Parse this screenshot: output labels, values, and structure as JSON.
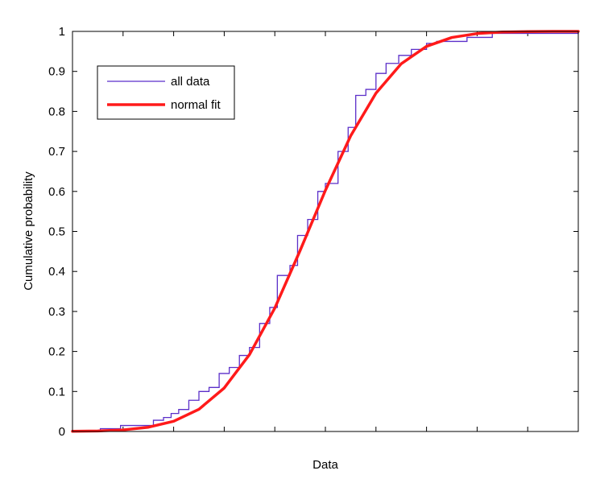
{
  "chart_data": {
    "type": "line",
    "title": "",
    "xlabel": "Data",
    "ylabel": "Cumulative probability",
    "xlim": [
      0,
      10
    ],
    "ylim": [
      0,
      1
    ],
    "x_tick_positions": [
      1,
      2,
      3,
      4,
      5,
      6,
      7,
      8,
      9
    ],
    "x_tick_labels_shown": false,
    "y_ticks": [
      0,
      0.1,
      0.2,
      0.3,
      0.4,
      0.5,
      0.6,
      0.7,
      0.8,
      0.9,
      1
    ],
    "y_tick_labels": [
      "0",
      "0.1",
      "0.2",
      "0.3",
      "0.4",
      "0.5",
      "0.6",
      "0.7",
      "0.8",
      "0.9",
      "1"
    ],
    "grid": false,
    "legend": {
      "location": "top-left",
      "entries": [
        "all data",
        "normal fit"
      ]
    },
    "series": [
      {
        "name": "all data",
        "style": "step",
        "color": "#5b2fc9",
        "x": [
          0,
          0.55,
          0.95,
          1.25,
          1.6,
          1.8,
          1.95,
          2.1,
          2.3,
          2.5,
          2.7,
          2.9,
          3.1,
          3.3,
          3.5,
          3.7,
          3.9,
          4.05,
          4.3,
          4.45,
          4.65,
          4.85,
          5.0,
          5.25,
          5.45,
          5.6,
          5.8,
          6.0,
          6.2,
          6.45,
          6.7,
          7.0,
          7.2,
          7.8,
          8.3,
          10
        ],
        "y": [
          0,
          0.007,
          0.015,
          0.015,
          0.028,
          0.035,
          0.045,
          0.055,
          0.078,
          0.1,
          0.11,
          0.145,
          0.16,
          0.19,
          0.21,
          0.27,
          0.31,
          0.39,
          0.415,
          0.49,
          0.53,
          0.6,
          0.62,
          0.7,
          0.76,
          0.84,
          0.855,
          0.895,
          0.92,
          0.94,
          0.955,
          0.97,
          0.975,
          0.985,
          0.995,
          1.0
        ]
      },
      {
        "name": "normal fit",
        "style": "line",
        "color": "#ff1a1a",
        "x": [
          0,
          0.5,
          1.0,
          1.5,
          2.0,
          2.5,
          3.0,
          3.5,
          4.0,
          4.5,
          5.0,
          5.5,
          6.0,
          6.5,
          7.0,
          7.5,
          8.0,
          8.5,
          9.0,
          9.5,
          10
        ],
        "y": [
          0.0004,
          0.0013,
          0.0039,
          0.0106,
          0.0255,
          0.0555,
          0.1087,
          0.1922,
          0.3085,
          0.4522,
          0.6026,
          0.7389,
          0.8456,
          0.9192,
          0.9626,
          0.9848,
          0.9946,
          0.9984,
          0.9996,
          0.9999,
          1.0
        ]
      }
    ]
  }
}
